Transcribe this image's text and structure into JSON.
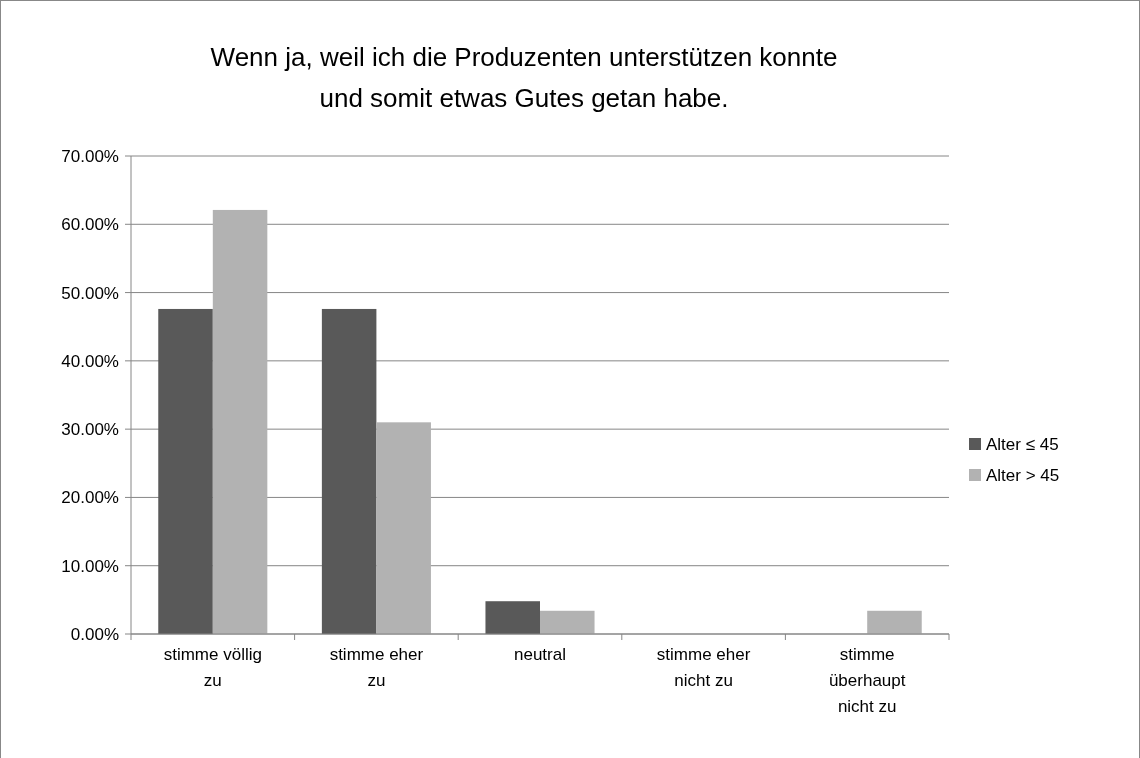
{
  "chart_data": {
    "type": "bar",
    "title": "Wenn ja, weil ich die Produzenten unterstützen konnte\nund somit etwas Gutes getan habe.",
    "categories": [
      "stimme völlig zu",
      "stimme eher zu",
      "neutral",
      "stimme eher nicht zu",
      "stimme überhaupt nicht zu"
    ],
    "series": [
      {
        "name": "Alter ≤ 45",
        "color": "#595959",
        "values": [
          47.6,
          47.6,
          4.8,
          0,
          0
        ]
      },
      {
        "name": "Alter > 45",
        "color": "#b2b2b2",
        "values": [
          62.1,
          31.0,
          3.4,
          0,
          3.4
        ]
      }
    ],
    "ylim": [
      0,
      70
    ],
    "yticks": [
      {
        "value": 0,
        "label": "0.00%"
      },
      {
        "value": 10,
        "label": "10.00%"
      },
      {
        "value": 20,
        "label": "20.00%"
      },
      {
        "value": 30,
        "label": "30.00%"
      },
      {
        "value": 40,
        "label": "40.00%"
      },
      {
        "value": 50,
        "label": "50.00%"
      },
      {
        "value": 60,
        "label": "60.00%"
      },
      {
        "value": 70,
        "label": "70.00%"
      }
    ],
    "grid": "y",
    "legend": "right"
  }
}
